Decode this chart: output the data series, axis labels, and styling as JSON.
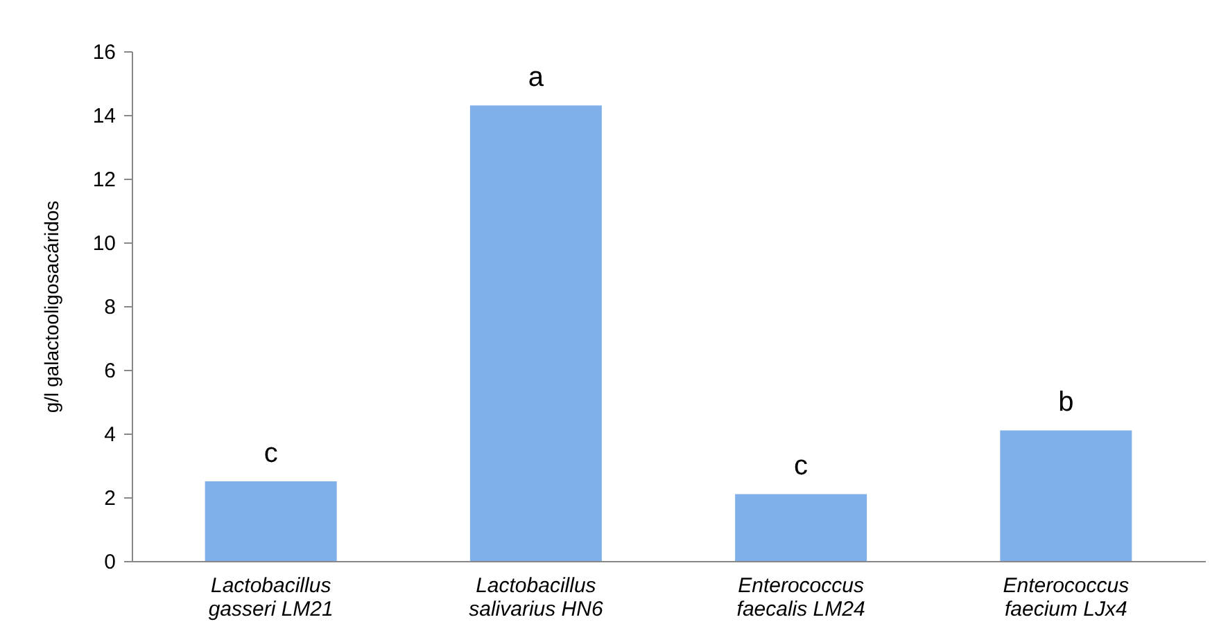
{
  "chart_data": {
    "type": "bar",
    "ylabel": "g/l galactooligosacáridos",
    "categories": [
      "Lactobacillus gasseri LM21",
      "Lactobacillus salivarius HN6",
      "Enterococcus faecalis LM24",
      "Enterococcus faecium LJx4"
    ],
    "values": [
      2.5,
      14.3,
      2.1,
      4.1
    ],
    "color": "#7fb0ea",
    "ylim": [
      0,
      16
    ],
    "yticks": [
      0,
      2,
      4,
      6,
      8,
      10,
      12,
      14,
      16
    ],
    "grid": false,
    "annotations": [
      {
        "text": "c",
        "x": "Lactobacillus gasseri LM21",
        "y": 2.5
      },
      {
        "text": "a",
        "x": "Lactobacillus salivarius HN6",
        "y": 14.3
      },
      {
        "text": "c",
        "x": "Enterococcus faecalis LM24",
        "y": 2.1
      },
      {
        "text": "b",
        "x": "Enterococcus faecium LJx4",
        "y": 4.1
      }
    ]
  }
}
